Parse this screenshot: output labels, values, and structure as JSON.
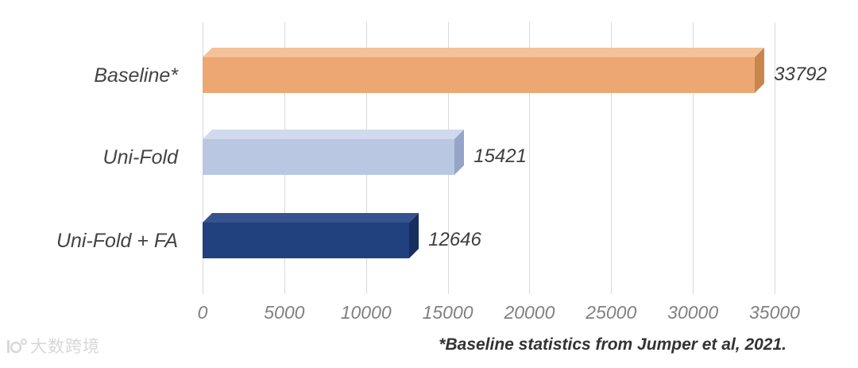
{
  "chart_data": {
    "type": "bar",
    "orientation": "horizontal",
    "title": "",
    "categories": [
      "Baseline*",
      "Uni-Fold",
      "Uni-Fold + FA"
    ],
    "values": [
      33792,
      15421,
      12646
    ],
    "value_labels": [
      "33792",
      "15421",
      "12646"
    ],
    "xlim": [
      0,
      35000
    ],
    "x_ticks": [
      0,
      5000,
      10000,
      15000,
      20000,
      25000,
      30000,
      35000
    ],
    "x_tick_labels": [
      "0",
      "5000",
      "10000",
      "15000",
      "20000",
      "25000",
      "30000",
      "35000"
    ],
    "grid": true,
    "gridline_color": "#d9d9d9",
    "footnote": "*Baseline statistics from Jumper et al, 2021.",
    "bar_colors": [
      {
        "face": "#eda772",
        "top": "#f3c298",
        "side": "#c9854e"
      },
      {
        "face": "#b9c7e2",
        "top": "#d1daec",
        "side": "#94a5c8"
      },
      {
        "face": "#20407e",
        "top": "#37538f",
        "side": "#172e5e"
      }
    ],
    "tick_label_color": "#808080",
    "category_label_color": "#444444"
  },
  "watermark": {
    "text": "大数跨境"
  }
}
